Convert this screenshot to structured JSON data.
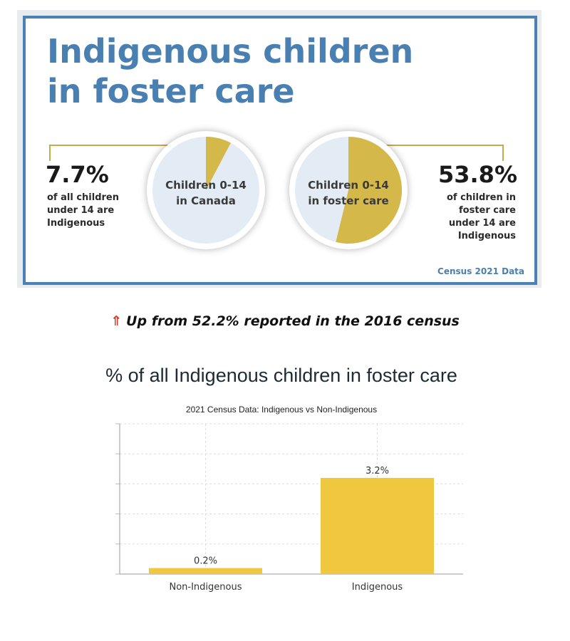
{
  "infographic": {
    "title": "Indigenous children\nin foster care",
    "left_stat": {
      "percent": "7.7%",
      "lines": [
        "of all children",
        "under 14 are",
        "Indigenous"
      ]
    },
    "left_pie": {
      "label_lines": [
        "Children 0-14",
        "in Canada"
      ],
      "fraction": 0.077
    },
    "right_pie": {
      "label_lines": [
        "Children 0-14",
        "in foster care"
      ],
      "fraction": 0.538
    },
    "right_stat": {
      "percent": "53.8%",
      "lines": [
        "of children in",
        "foster care",
        "under 14 are",
        "Indigenous"
      ]
    },
    "source": "Census 2021 Data",
    "colors": {
      "accent": "#4a7fb2",
      "slice": "#d4b84a",
      "pie_bg": "#e3ecf5",
      "leader": "#c9a94a"
    }
  },
  "update_note": {
    "icon": "up-arrow-icon",
    "arrow": "⇑",
    "text": "Up from 52.2% reported in the 2016 census"
  },
  "chart_heading": "% of all Indigenous children in foster care",
  "chart_data": {
    "type": "bar",
    "title": "2021 Census Data: Indigenous vs Non-Indigenous",
    "categories": [
      "Non-Indigenous",
      "Indigenous"
    ],
    "values": [
      0.2,
      3.2
    ],
    "value_labels": [
      "0.2%",
      "3.2%"
    ],
    "xlabel": "",
    "ylabel": "",
    "ylim": [
      0,
      5
    ],
    "grid": true,
    "bar_color": "#f0c840"
  }
}
